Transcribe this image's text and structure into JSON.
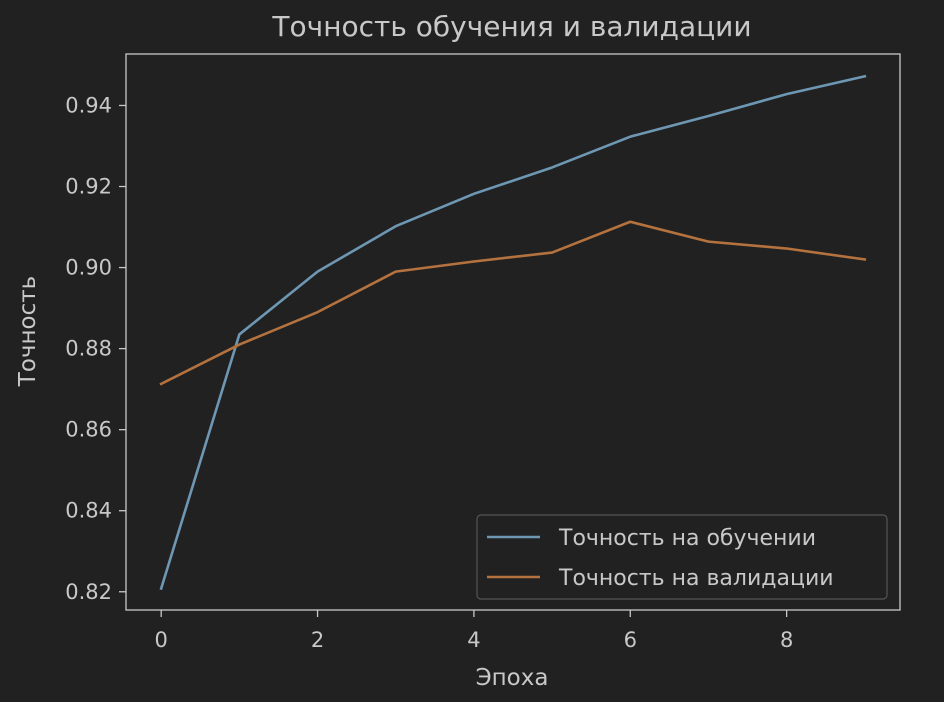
{
  "chart_data": {
    "type": "line",
    "title": "Точность обучения и валидации",
    "xlabel": "Эпоха",
    "ylabel": "Точность",
    "x": [
      0,
      1,
      2,
      3,
      4,
      5,
      6,
      7,
      8,
      9
    ],
    "xlim": [
      -0.45,
      9.45
    ],
    "ylim": [
      0.8155,
      0.9527
    ],
    "x_ticks": [
      0,
      2,
      4,
      6,
      8
    ],
    "y_ticks": [
      0.82,
      0.84,
      0.86,
      0.88,
      0.9,
      0.92,
      0.94
    ],
    "x_tick_labels": [
      "0",
      "2",
      "4",
      "6",
      "8"
    ],
    "y_tick_labels": [
      "0.82",
      "0.84",
      "0.86",
      "0.88",
      "0.90",
      "0.92",
      "0.94"
    ],
    "grid": false,
    "legend_position": "lower-right",
    "series": [
      {
        "name": "Точность на обучении",
        "color": "#6e97b3",
        "values": [
          0.8208,
          0.8835,
          0.899,
          0.9102,
          0.9182,
          0.9247,
          0.9323,
          0.9374,
          0.9428,
          0.9472
        ]
      },
      {
        "name": "Точность на валидации",
        "color": "#b4723f",
        "values": [
          0.8713,
          0.881,
          0.889,
          0.899,
          0.9015,
          0.9037,
          0.9113,
          0.9064,
          0.9047,
          0.902
        ]
      }
    ],
    "colors": {
      "background": "#212121",
      "axes": "#c8c8c8",
      "text": "#c8c8c8"
    }
  }
}
